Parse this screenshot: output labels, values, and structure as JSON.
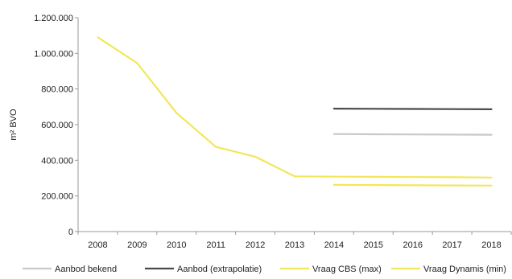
{
  "chart_data": {
    "type": "line",
    "title": "",
    "xlabel": "",
    "ylabel": "m² BVO",
    "x": [
      "2008",
      "2009",
      "2010",
      "2011",
      "2012",
      "2013",
      "2014",
      "2015",
      "2016",
      "2017",
      "2018"
    ],
    "ylim": [
      0,
      1200000
    ],
    "yticks": [
      {
        "value": 0,
        "label": "0"
      },
      {
        "value": 200000,
        "label": "200.000"
      },
      {
        "value": 400000,
        "label": "400.000"
      },
      {
        "value": 600000,
        "label": "600.000"
      },
      {
        "value": 800000,
        "label": "800.000"
      },
      {
        "value": 1000000,
        "label": "1.000.000"
      },
      {
        "value": 1200000,
        "label": "1.200.000"
      }
    ],
    "grid": false,
    "legend_position": "bottom",
    "series": [
      {
        "name": "Aanbod bekend",
        "color": "#c8c8c8",
        "values": [
          null,
          null,
          null,
          null,
          null,
          null,
          547000,
          546000,
          545000,
          544000,
          543000
        ]
      },
      {
        "name": "Aanbod (extrapolatie)",
        "color": "#4a4a4a",
        "values": [
          null,
          null,
          null,
          null,
          null,
          null,
          690000,
          689000,
          688000,
          687000,
          686000
        ]
      },
      {
        "name": "Vraag CBS (max)",
        "color": "#f2e65a",
        "values": [
          1090000,
          945000,
          665000,
          475000,
          420000,
          310000,
          308000,
          307000,
          306000,
          305000,
          303000
        ]
      },
      {
        "name": "Vraag Dynamis (min)",
        "color": "#f2e65a",
        "values": [
          null,
          null,
          null,
          null,
          null,
          null,
          262000,
          261000,
          260000,
          259000,
          258000
        ]
      }
    ]
  }
}
